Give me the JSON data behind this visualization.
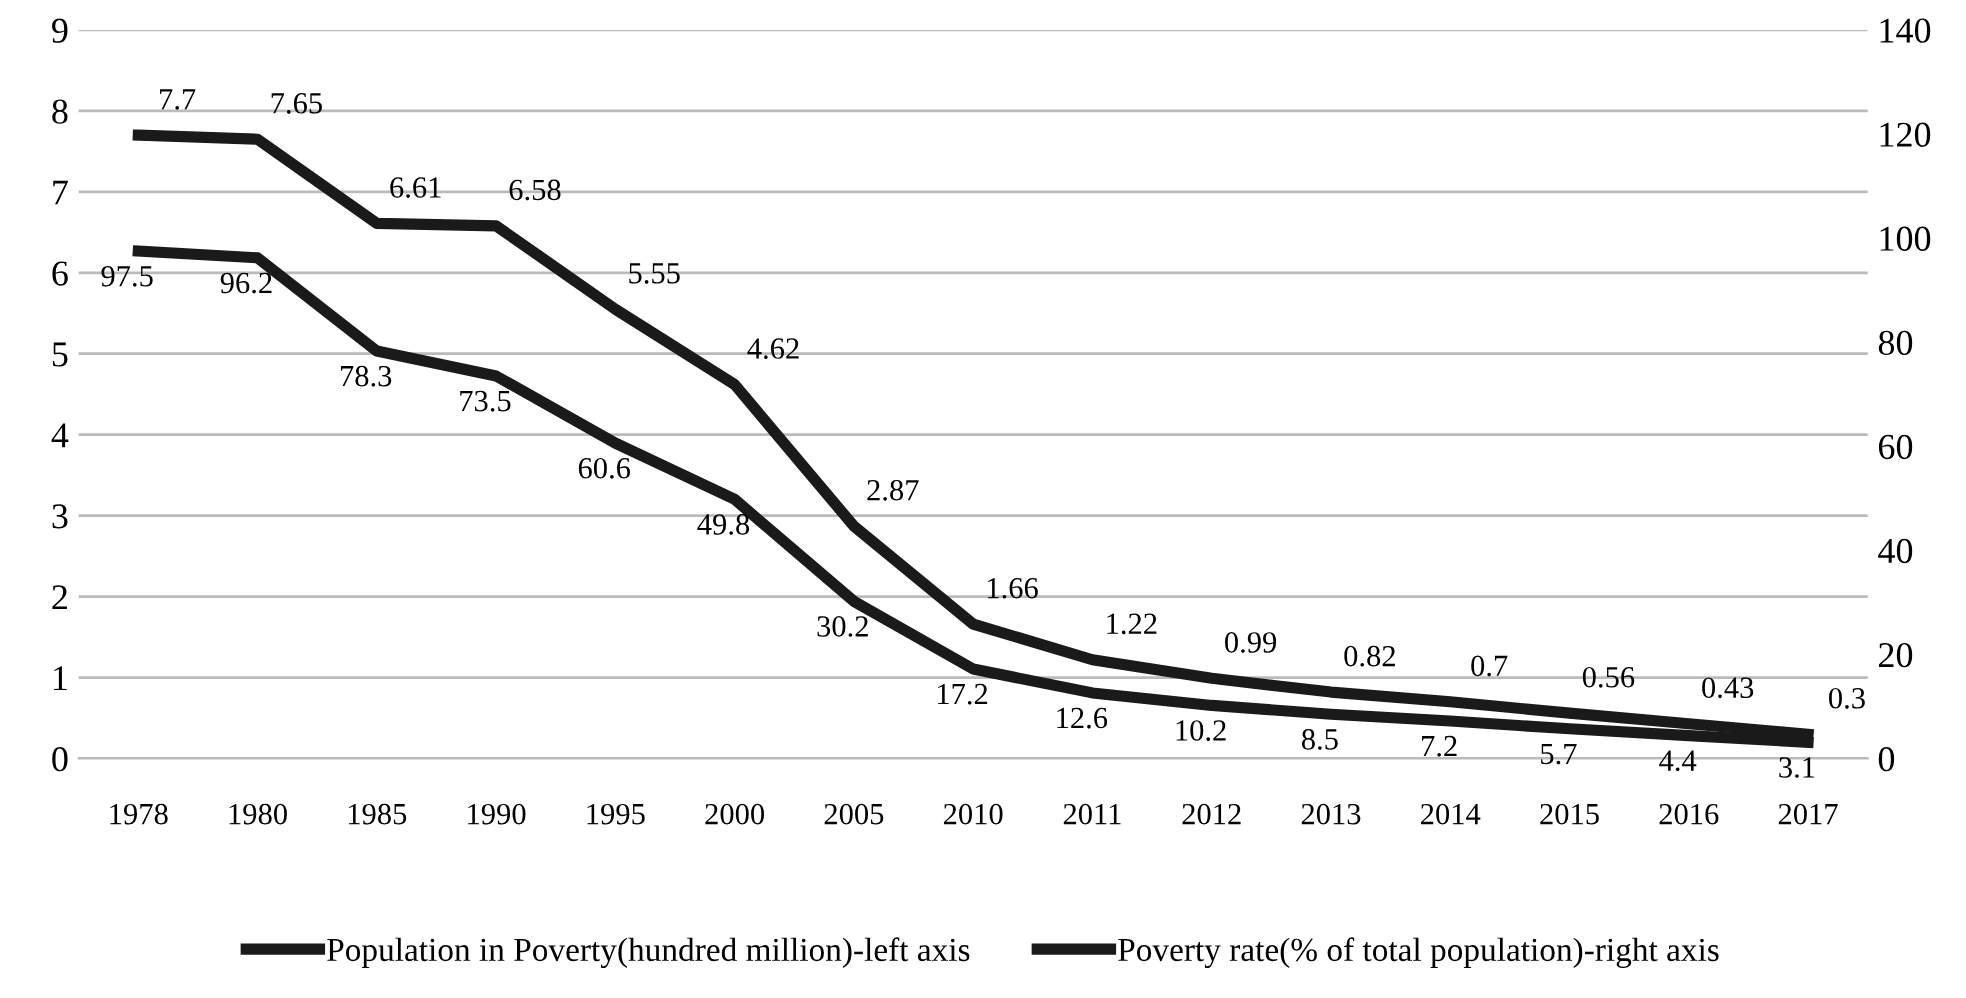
{
  "chart_data": {
    "type": "line",
    "categories": [
      "1978",
      "1980",
      "1985",
      "1990",
      "1995",
      "2000",
      "2005",
      "2010",
      "2011",
      "2012",
      "2013",
      "2014",
      "2015",
      "2016",
      "2017"
    ],
    "series": [
      {
        "name": "Population in Poverty(hundred million)-left axis",
        "color": "#1a1a1a",
        "values": [
          7.7,
          7.65,
          6.61,
          6.58,
          5.55,
          4.62,
          2.87,
          1.66,
          1.22,
          0.99,
          0.82,
          0.7,
          0.56,
          0.43,
          0.3
        ]
      },
      {
        "name": "Poverty rate(% of total population)-right axis",
        "color": "#1a1a1a",
        "axis": "y2",
        "values": [
          97.5,
          96.2,
          78.3,
          73.5,
          60.6,
          49.8,
          30.2,
          17.2,
          12.6,
          10.2,
          8.5,
          7.2,
          5.7,
          4.4,
          3.1
        ]
      }
    ],
    "ylim": [
      0,
      9
    ],
    "yticks": [
      0,
      1,
      2,
      3,
      4,
      5,
      6,
      7,
      8,
      9
    ],
    "y2lim": [
      0,
      140
    ],
    "y2ticks": [
      0,
      20,
      40,
      60,
      80,
      100,
      120,
      140
    ],
    "grid": "y",
    "legend": "bottom",
    "data_labels": true,
    "marker": "none",
    "line_style": "solid"
  }
}
